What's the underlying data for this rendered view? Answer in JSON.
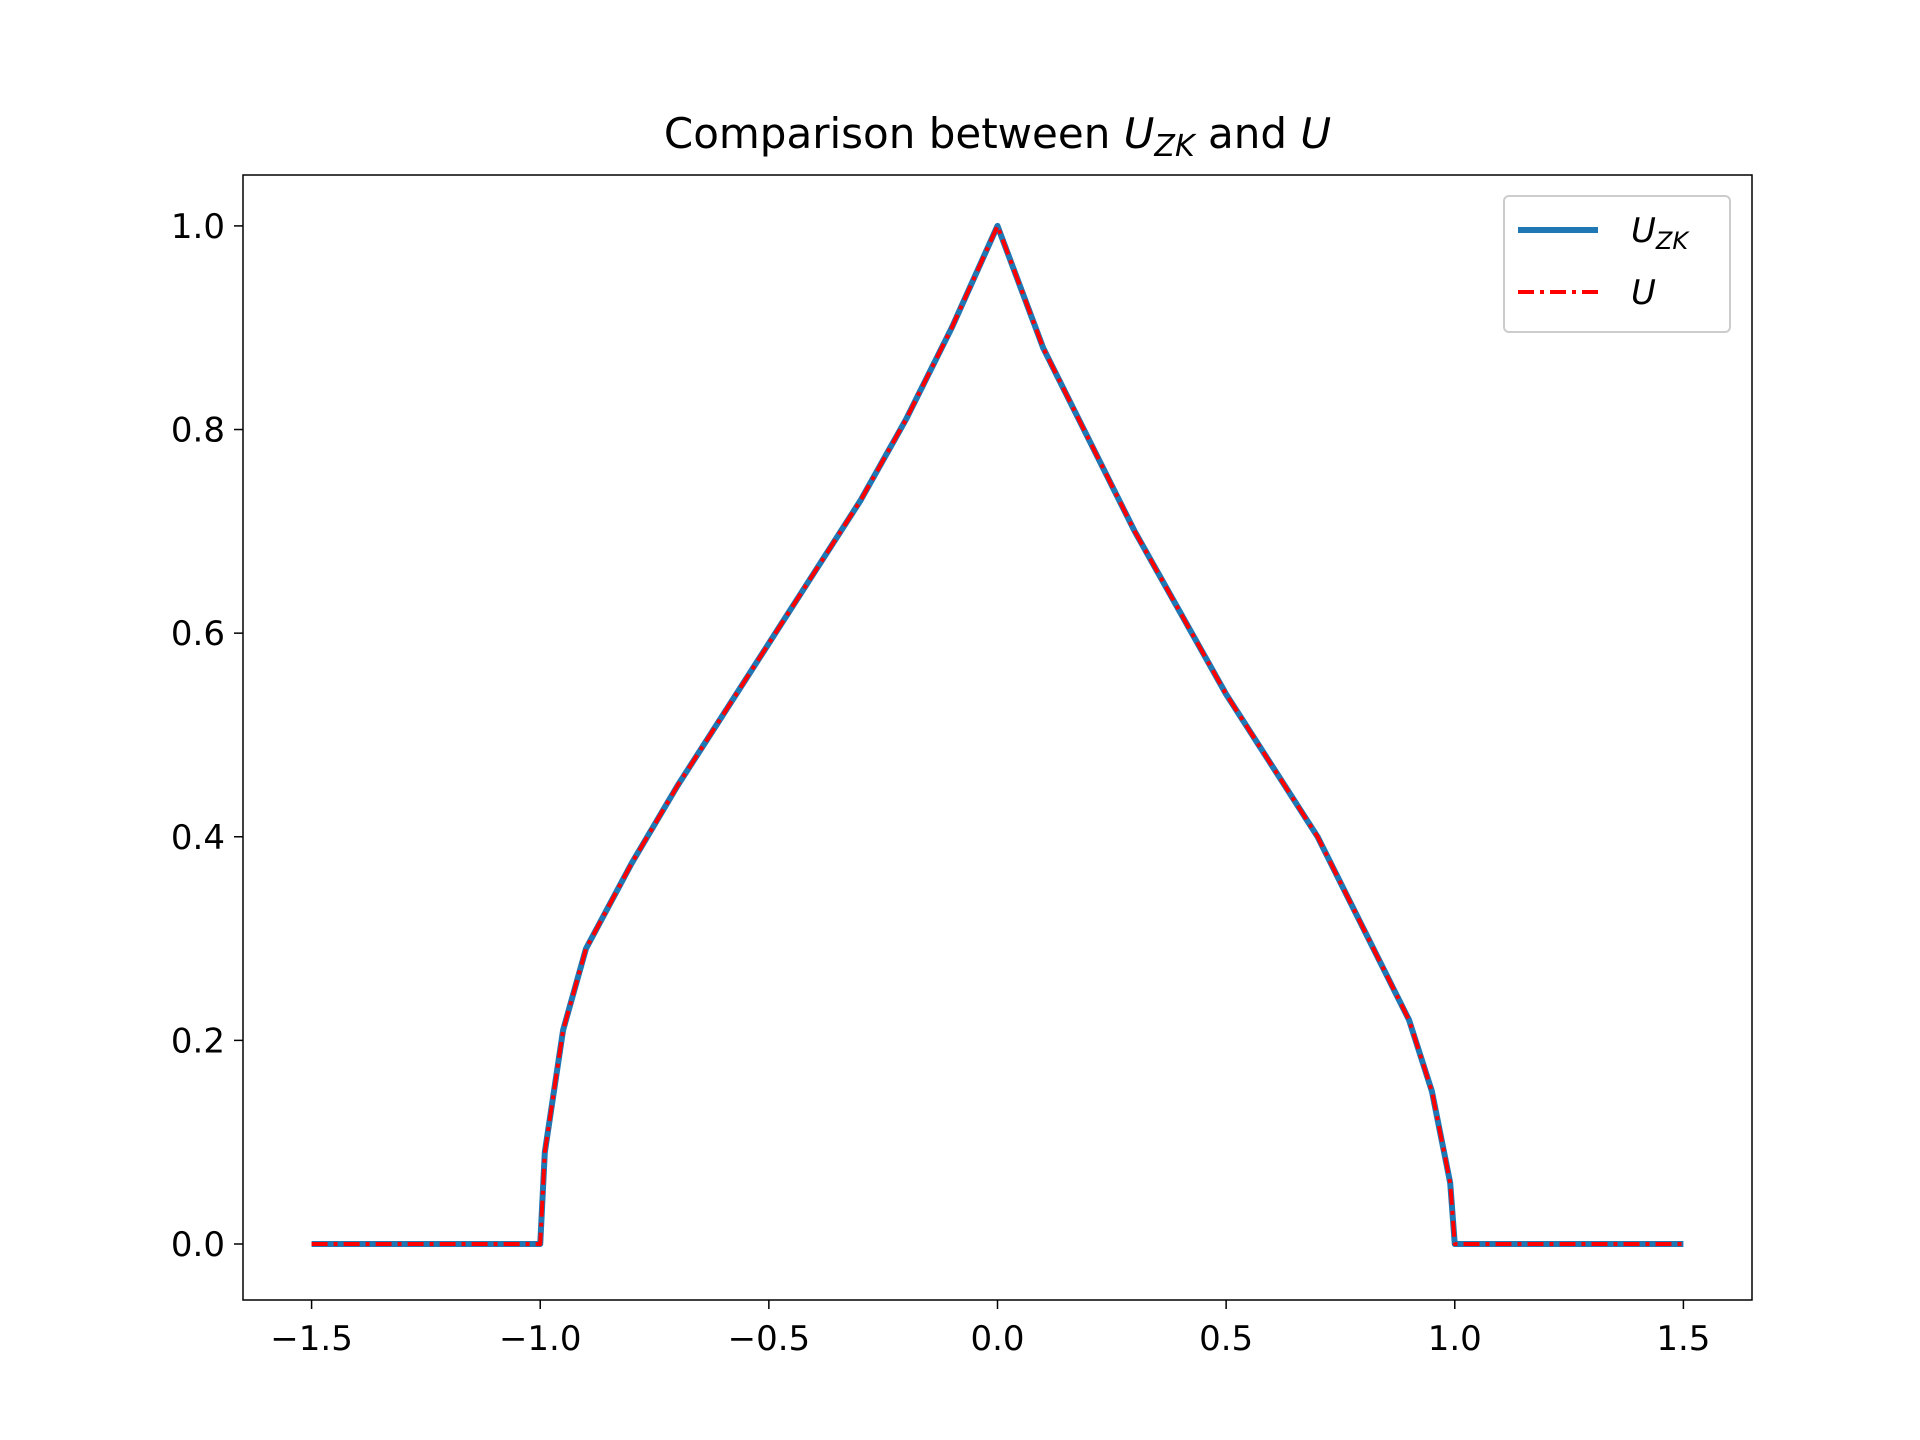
{
  "chart_data": {
    "type": "line",
    "title": [
      "Comparison between ",
      "U",
      "ZK",
      " and ",
      "U"
    ],
    "x": [
      -1.5,
      -1.0,
      -0.99,
      -0.95,
      -0.9,
      -0.8,
      -0.7,
      -0.6,
      -0.5,
      -0.4,
      -0.3,
      -0.2,
      -0.1,
      0.0,
      0.1,
      0.2,
      0.3,
      0.4,
      0.5,
      0.6,
      0.7,
      0.8,
      0.9,
      0.95,
      0.99,
      1.0,
      1.5
    ],
    "series": [
      {
        "name": "U",
        "name_sub": "ZK",
        "color": "#1f77b4",
        "style": "solid",
        "values": [
          0,
          0,
          0.09,
          0.21,
          0.29,
          0.374,
          0.45,
          0.52,
          0.59,
          0.66,
          0.73,
          0.81,
          0.9,
          1.0,
          0.88,
          0.79,
          0.7,
          0.62,
          0.54,
          0.47,
          0.4,
          0.31,
          0.22,
          0.15,
          0.06,
          0,
          0
        ]
      },
      {
        "name": "U",
        "color": "#ff0000",
        "style": "dashdot",
        "values": [
          0,
          0,
          0.09,
          0.21,
          0.29,
          0.374,
          0.45,
          0.52,
          0.59,
          0.66,
          0.73,
          0.81,
          0.9,
          1.0,
          0.88,
          0.79,
          0.7,
          0.62,
          0.54,
          0.47,
          0.4,
          0.31,
          0.22,
          0.15,
          0.06,
          0,
          0
        ]
      }
    ],
    "xlim": [
      -1.65,
      1.65
    ],
    "ylim": [
      -0.055,
      1.05
    ],
    "xticks": [
      {
        "value": -1.5,
        "label": "−1.5"
      },
      {
        "value": -1.0,
        "label": "−1.0"
      },
      {
        "value": -0.5,
        "label": "−0.5"
      },
      {
        "value": 0.0,
        "label": "0.0"
      },
      0.5,
      {
        "value": 1.0,
        "label": "1.0"
      },
      1.5
    ],
    "yticks": [
      {
        "value": 0.0,
        "label": "0.0"
      },
      0.2,
      0.4,
      0.6,
      0.8,
      {
        "value": 1.0,
        "label": "1.0"
      }
    ],
    "grid": false,
    "legend": "upper right"
  }
}
